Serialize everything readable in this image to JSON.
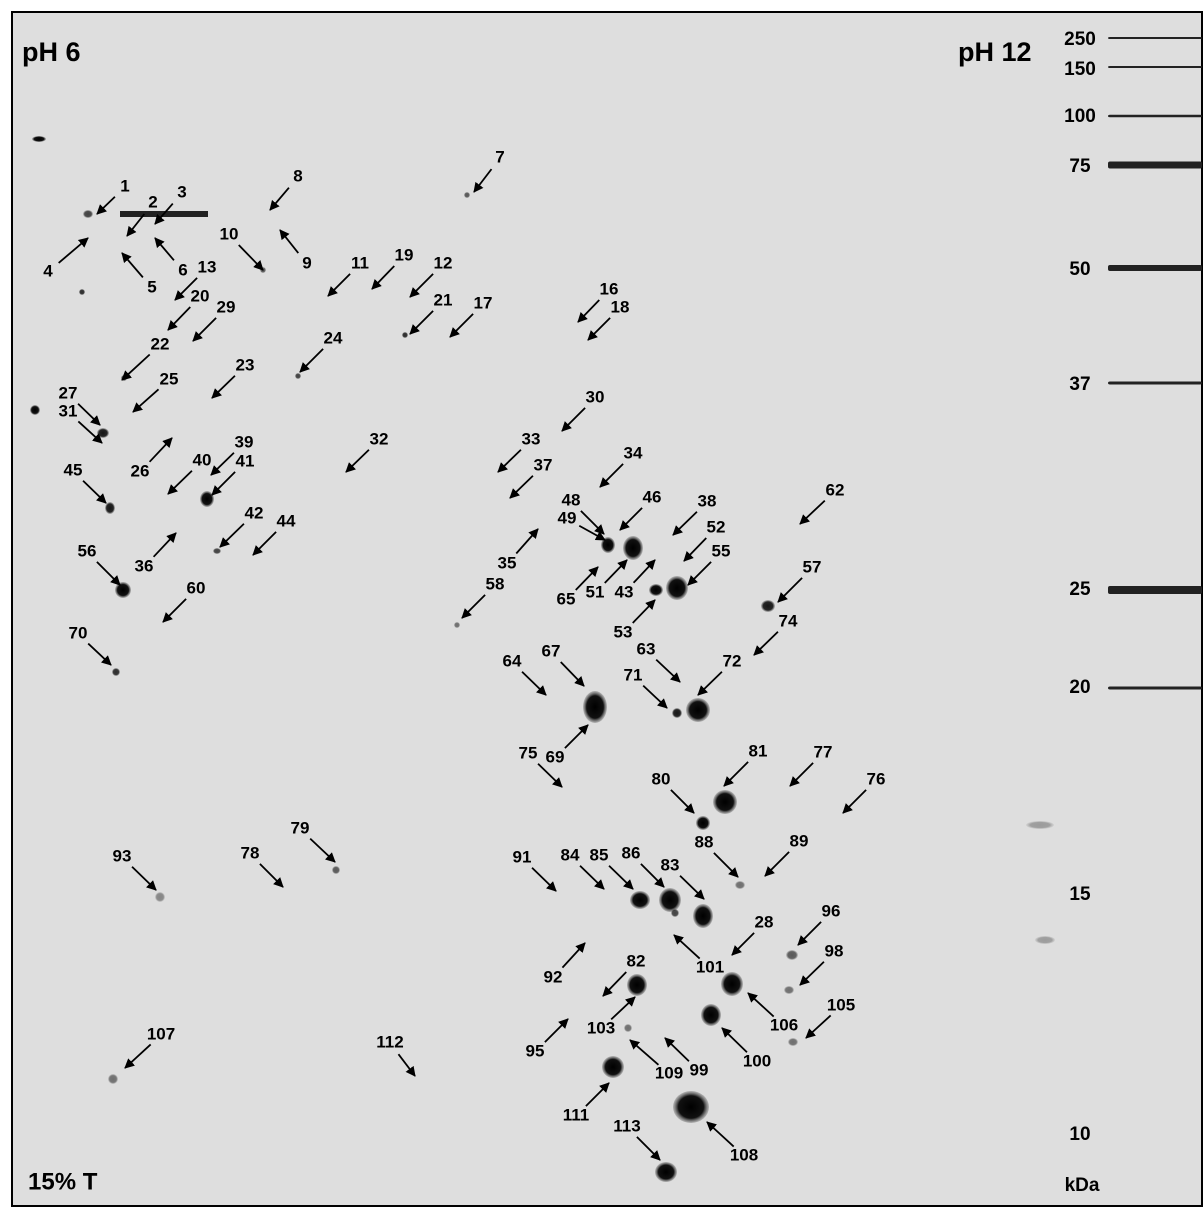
{
  "gel": {
    "ph_left": "pH 6",
    "ph_right": "pH 12",
    "gel_percent": "15% T",
    "mw_unit": "kDa",
    "mw_markers": [
      250,
      150,
      100,
      75,
      50,
      37,
      25,
      20,
      15,
      10
    ],
    "spot_labels": [
      1,
      2,
      3,
      4,
      5,
      6,
      7,
      8,
      9,
      10,
      11,
      12,
      13,
      16,
      17,
      18,
      19,
      20,
      21,
      22,
      23,
      24,
      25,
      26,
      27,
      28,
      29,
      30,
      31,
      32,
      33,
      34,
      35,
      36,
      37,
      38,
      39,
      40,
      41,
      42,
      43,
      44,
      45,
      46,
      48,
      49,
      51,
      52,
      53,
      55,
      56,
      57,
      58,
      60,
      62,
      63,
      64,
      65,
      67,
      69,
      70,
      71,
      72,
      74,
      75,
      76,
      77,
      78,
      79,
      80,
      81,
      82,
      83,
      84,
      85,
      86,
      88,
      89,
      91,
      92,
      93,
      95,
      96,
      98,
      99,
      100,
      101,
      103,
      105,
      106,
      107,
      108,
      109,
      111,
      112,
      113
    ]
  }
}
